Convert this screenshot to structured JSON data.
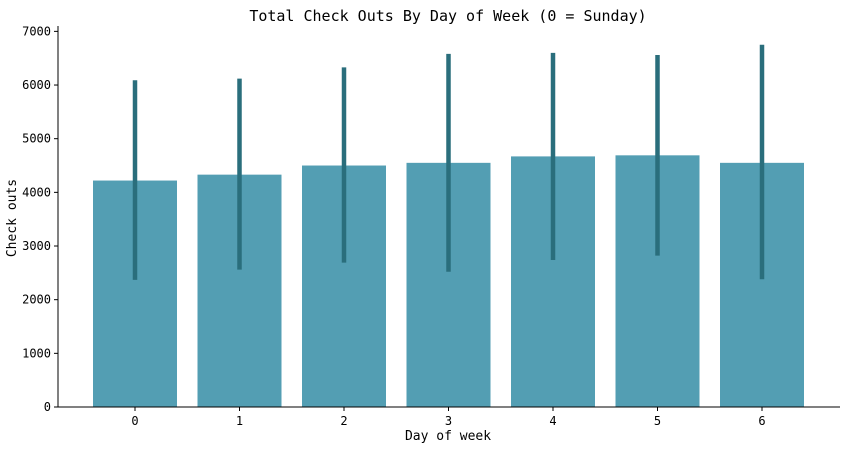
{
  "chart_data": {
    "type": "bar",
    "title": "Total Check Outs By Day of Week (0 = Sunday)",
    "xlabel": "Day of week",
    "ylabel": "Check outs",
    "categories": [
      "0",
      "1",
      "2",
      "3",
      "4",
      "5",
      "6"
    ],
    "values": [
      4220,
      4330,
      4500,
      4550,
      4670,
      4690,
      4550
    ],
    "error_low": [
      2370,
      2560,
      2690,
      2520,
      2740,
      2820,
      2380
    ],
    "error_high": [
      6090,
      6120,
      6330,
      6580,
      6600,
      6560,
      6750
    ],
    "ylim": [
      0,
      7100
    ],
    "yticks": [
      0,
      1000,
      2000,
      3000,
      4000,
      5000,
      6000,
      7000
    ],
    "grid": false,
    "bar_color": "#539eb3",
    "error_color": "#2a6e7c"
  }
}
